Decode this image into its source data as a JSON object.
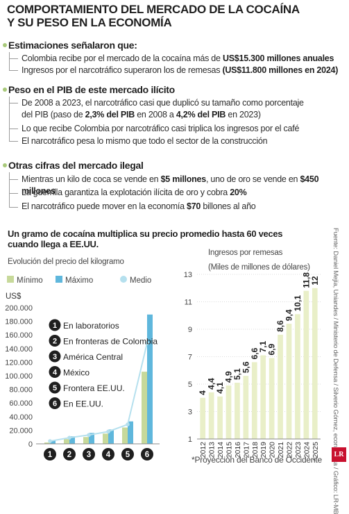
{
  "header": {
    "title_line1": "COMPORTAMIENTO DEL MERCADO DE LA COCAÍNA",
    "title_line2": "Y SU PESO EN LA ECONOMÍA"
  },
  "sections": [
    {
      "heading": "Estimaciones señalaron que:",
      "items": [
        {
          "pre": "Colombia recibe por el mercado de la cocaína más de ",
          "bold": "US$15.300 millones anuales",
          "post": ""
        },
        {
          "pre": "Ingresos por el narcotráfico superaron los de remesas ",
          "bold": "(US$11.800 millones en 2024)",
          "post": ""
        }
      ]
    },
    {
      "heading": "Peso en el PIB de este mercado ilícito",
      "items": [
        {
          "line1": "De 2008 a 2023, el narcotráfico casi que duplicó su tamaño como porcentaje",
          "pre": "del PIB (paso de ",
          "bold": "2,3% del PIB",
          "mid": " en 2008 a ",
          "bold2": "4,2% del PIB",
          "post": " en 2023)"
        },
        {
          "pre": "Lo que recibe Colombia por narcotráfico casi triplica los ingresos por el café",
          "bold": "",
          "post": ""
        },
        {
          "pre": "El narcotráfico pesa lo mismo que todo el sector de la construcción",
          "bold": "",
          "post": ""
        }
      ]
    },
    {
      "heading": "Otras cifras del mercado ilegal",
      "items": [
        {
          "pre": "Mientras un kilo de coca se vende en ",
          "bold": "$5 millones",
          "mid": ", uno de oro se vende en ",
          "bold2": "$450 millones",
          "post": ""
        },
        {
          "pre": "La guerrilla garantiza la explotación ilícita de oro y cobra ",
          "bold": "20%",
          "post": ""
        },
        {
          "pre": "El narcotráfico puede mover en la economía ",
          "bold": "$70",
          "post": " billones al año"
        }
      ]
    }
  ],
  "chart_left": {
    "title_line1": "Un gramo de cocaína multiplica su precio promedio hasta 60 veces",
    "title_line2": "cuando llega a EE.UU.",
    "subtitle": "Evolución del precio del kilogramo",
    "unit": "US$",
    "legend": [
      "Mínimo",
      "Máximo",
      "Medio"
    ],
    "colors": {
      "min": "#c7d99a",
      "max": "#5fb7dc",
      "medio": "#b5e0ee"
    },
    "stages": [
      "En laboratorios",
      "En fronteras de Colombia",
      "América Central",
      "México",
      "Frontera EE.UU.",
      "En EE.UU."
    ]
  },
  "chart_right": {
    "title": "Ingresos por remesas",
    "unit": "(Miles de millones de dólares)",
    "footnote": "*Proyección del Banco de Occidente"
  },
  "chart_data": [
    {
      "type": "bar",
      "title": "Evolución del precio del kilogramo",
      "ylabel": "US$",
      "categories": [
        "1",
        "2",
        "3",
        "4",
        "5",
        "6"
      ],
      "series": [
        {
          "name": "Mínimo",
          "values": [
            2000,
            7000,
            10000,
            15000,
            24000,
            106000
          ]
        },
        {
          "name": "Máximo",
          "values": [
            5500,
            11000,
            16000,
            21000,
            33000,
            190000
          ]
        },
        {
          "name": "Medio",
          "values": [
            4000,
            9000,
            13000,
            18000,
            28500,
            148000
          ]
        }
      ],
      "ylim": [
        0,
        200000
      ],
      "yticks": [
        "0",
        "20.000",
        "40.000",
        "60.000",
        "80.000",
        "100.000",
        "120.000",
        "140.000",
        "160.000",
        "180.000",
        "200.000"
      ],
      "ytick_values": [
        0,
        20000,
        40000,
        60000,
        80000,
        100000,
        120000,
        140000,
        160000,
        180000,
        200000
      ],
      "grid": false,
      "legend": "top"
    },
    {
      "type": "bar",
      "title": "Ingresos por remesas",
      "ylabel": "(Miles de millones de dólares)",
      "categories": [
        "2012",
        "2013",
        "2014",
        "2015",
        "2016",
        "2017",
        "2018",
        "2019",
        "2020",
        "2021",
        "2022",
        "2023",
        "2024",
        "*2025"
      ],
      "values": [
        4,
        4.4,
        4.1,
        4.9,
        5.1,
        5.6,
        6.6,
        7.1,
        6.9,
        8.6,
        9.4,
        10.1,
        11.8,
        12
      ],
      "labels": [
        "4",
        "4,4",
        "4,1",
        "4,9",
        "5,1",
        "5,6",
        "6,6",
        "7,1",
        "6,9",
        "8,6",
        "9,4",
        "10,1",
        "11,8",
        "12"
      ],
      "ylim": [
        1,
        13
      ],
      "yticks": [
        "1",
        "3",
        "5",
        "7",
        "9",
        "11",
        "13"
      ],
      "ytick_values": [
        1,
        3,
        5,
        7,
        9,
        11,
        13
      ],
      "grid": true
    }
  ]
}
